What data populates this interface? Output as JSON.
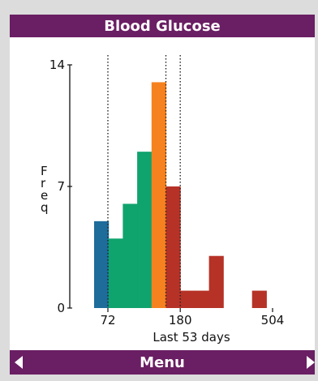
{
  "titlebar": {
    "title": "Blood Glucose"
  },
  "softkeys": {
    "center_label": "Menu",
    "left_icon": "triangle-left-icon",
    "right_icon": "triangle-right-icon"
  },
  "chart_data": {
    "type": "bar",
    "title": "Blood Glucose",
    "xlabel": "Last 53 days",
    "ylabel": "Freq",
    "ylim": [
      0,
      14
    ],
    "yticks": [
      0,
      7,
      14
    ],
    "xticks": [
      72,
      180,
      504
    ],
    "threshold_lines": [
      72,
      162,
      180
    ],
    "bars": [
      {
        "value": 5,
        "color": "#1d6c9a"
      },
      {
        "value": 4,
        "color": "#0fa36e"
      },
      {
        "value": 6,
        "color": "#0fa36e"
      },
      {
        "value": 9,
        "color": "#0fa36e"
      },
      {
        "value": 13,
        "color": "#f6821f"
      },
      {
        "value": 7,
        "color": "#b63227"
      },
      {
        "value": 1,
        "color": "#b63227"
      },
      {
        "value": 1,
        "color": "#b63227"
      },
      {
        "value": 3,
        "color": "#b63227"
      },
      {
        "value": 0,
        "color": "#b63227"
      },
      {
        "value": 0,
        "color": "#b63227"
      },
      {
        "value": 1,
        "color": "#b63227"
      }
    ],
    "bin_edges": [
      72,
      90,
      108,
      126,
      144,
      162,
      180,
      198,
      216,
      234,
      252,
      270,
      288
    ]
  }
}
